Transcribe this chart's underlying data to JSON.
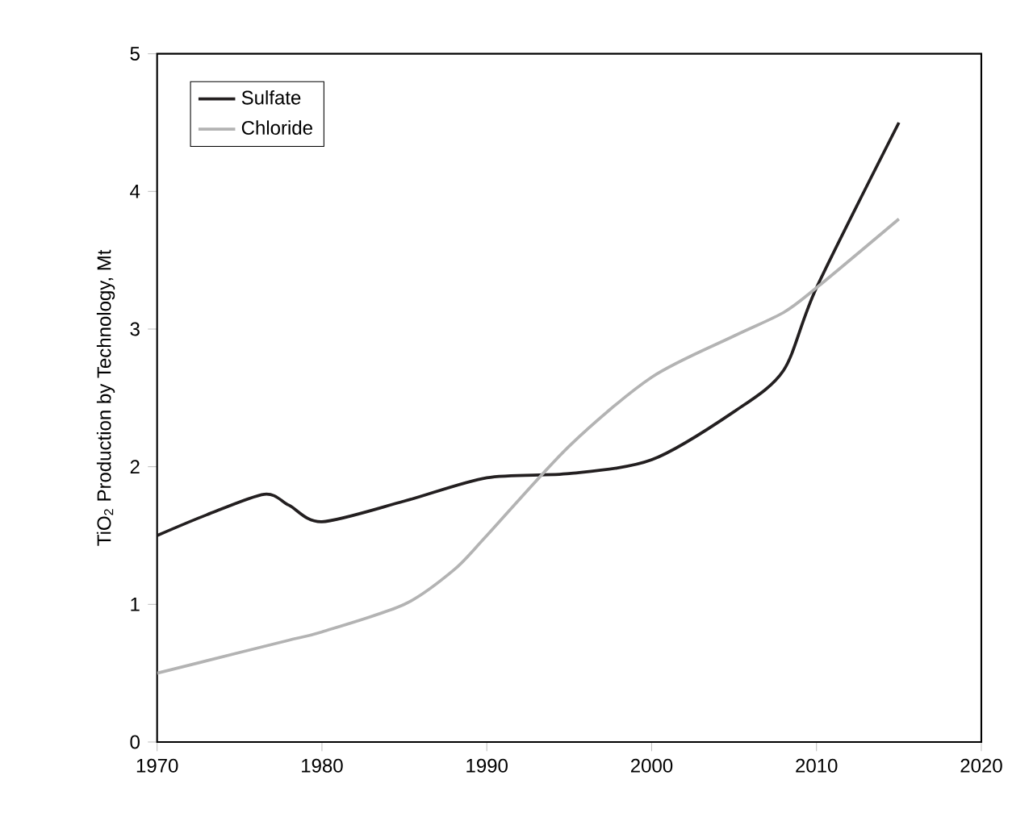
{
  "chart_data": {
    "type": "line",
    "ylabel": "TiO$_{2}$ Production by Technology, Mt",
    "xlim": [
      1970,
      2020
    ],
    "ylim": [
      0,
      5
    ],
    "xticks": [
      1970,
      1980,
      1990,
      2000,
      2010,
      2020
    ],
    "yticks": [
      0,
      1,
      2,
      3,
      4,
      5
    ],
    "grid": false,
    "legend": "top left",
    "marker": "none",
    "line_style": "solid",
    "series": [
      {
        "name": "Sulfate",
        "color": "#231f20",
        "x": [
          1970,
          1973,
          1976.5,
          1978,
          1980,
          1985,
          1990,
          1995,
          2000,
          2005,
          2008,
          2010,
          2015
        ],
        "values": [
          1.5,
          1.65,
          1.8,
          1.72,
          1.6,
          1.75,
          1.92,
          1.95,
          2.05,
          2.4,
          2.7,
          3.3,
          4.5
        ]
      },
      {
        "name": "Chloride",
        "color": "#b3b3b3",
        "x": [
          1970,
          1975,
          1978,
          1980,
          1985,
          1988,
          1990,
          1995,
          2000,
          2005,
          2008,
          2010,
          2015
        ],
        "values": [
          0.5,
          0.65,
          0.74,
          0.8,
          1.0,
          1.25,
          1.5,
          2.15,
          2.65,
          2.95,
          3.12,
          3.3,
          3.8
        ]
      }
    ]
  }
}
